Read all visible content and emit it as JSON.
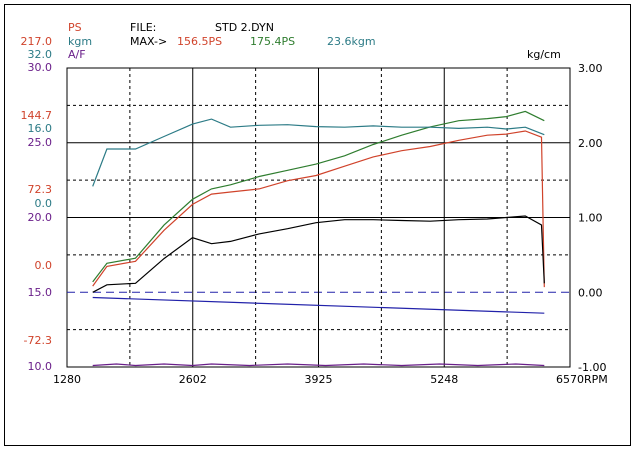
{
  "header": {
    "left_labels": [
      {
        "text": "PS",
        "color": "#d0432b"
      },
      {
        "text": "kgm",
        "color": "#2c7b86"
      },
      {
        "text": "A/F",
        "color": "#6a1f8a"
      }
    ],
    "file_label": "FILE:",
    "file_name": "STD 2.DYN",
    "max_label": "MAX->",
    "max_ps_red": "156.5PS",
    "max_ps_green": "175.4PS",
    "max_kgm": "23.6kgm",
    "right_unit": "kg/cm"
  },
  "axes": {
    "x_ticks": [
      "1280",
      "2602",
      "3925",
      "5248",
      "6570"
    ],
    "x_unit": "RPM",
    "left_ticks": [
      {
        "text": "217.0",
        "color": "#d0432b"
      },
      {
        "text": "32.0",
        "color": "#2c7b86"
      },
      {
        "text": "30.0",
        "color": "#6a1f8a"
      },
      {
        "text": "144.7",
        "color": "#d0432b"
      },
      {
        "text": "16.0",
        "color": "#2c7b86"
      },
      {
        "text": "25.0",
        "color": "#6a1f8a"
      },
      {
        "text": "72.3",
        "color": "#d0432b"
      },
      {
        "text": "0.0",
        "color": "#2c7b86"
      },
      {
        "text": "20.0",
        "color": "#6a1f8a"
      },
      {
        "text": "0.0",
        "color": "#d0432b"
      },
      {
        "text": "15.0",
        "color": "#6a1f8a"
      },
      {
        "text": "-72.3",
        "color": "#d0432b"
      },
      {
        "text": "10.0",
        "color": "#6a1f8a"
      }
    ],
    "right_ticks": [
      "3.00",
      "2.00",
      "1.00",
      "0.00",
      "-1.00"
    ]
  },
  "colors": {
    "ps_red": "#d0432b",
    "ps_green": "#2f7d2f",
    "kgm": "#2c7b86",
    "boost": "#000000",
    "af": "#6a1f8a",
    "blue_line": "#2222aa"
  },
  "chart_data": {
    "type": "line",
    "title": "",
    "xlabel": "RPM",
    "xlim": [
      1280,
      6570
    ],
    "y_left_ps_range": [
      -72.3,
      217.0
    ],
    "y_left_kgm_range": [
      -16.0,
      32.0
    ],
    "y_left_af_range": [
      10.0,
      30.0
    ],
    "y_right_range": [
      -1.0,
      3.0
    ],
    "grid": true,
    "series": [
      {
        "name": "",
        "axis": "ps",
        "color": "#d0432b",
        "x": [
          1550,
          1700,
          2000,
          2300,
          2600,
          2800,
          3000,
          3300,
          3600,
          3900,
          4200,
          4500,
          4800,
          5100,
          5400,
          5700,
          5900,
          6100,
          6270,
          6300
        ],
        "y": [
          6,
          25,
          30,
          60,
          85,
          95,
          97,
          100,
          108,
          113,
          122,
          131,
          137,
          141,
          147,
          152,
          153,
          156,
          150,
          5
        ]
      },
      {
        "name": "",
        "axis": "ps",
        "color": "#2f7d2f",
        "x": [
          1550,
          1700,
          2000,
          2300,
          2600,
          2800,
          3000,
          3300,
          3600,
          3900,
          4200,
          4500,
          4800,
          5100,
          5400,
          5700,
          5900,
          6100,
          6300
        ],
        "y": [
          10,
          28,
          33,
          65,
          90,
          100,
          104,
          112,
          118,
          124,
          132,
          143,
          152,
          160,
          166,
          168,
          170,
          175,
          166
        ]
      },
      {
        "name": "",
        "axis": "kgm",
        "color": "#2c7b86",
        "x": [
          1550,
          1700,
          2000,
          2300,
          2600,
          2800,
          3000,
          3300,
          3600,
          3900,
          4200,
          4500,
          4800,
          5100,
          5400,
          5700,
          5900,
          6100,
          6300
        ],
        "y": [
          13,
          19,
          19,
          21,
          23,
          23.8,
          22.5,
          22.8,
          22.9,
          22.6,
          22.5,
          22.7,
          22.5,
          22.5,
          22.3,
          22.5,
          22.2,
          22.5,
          21.3
        ]
      },
      {
        "name": "",
        "axis": "right",
        "color": "#000000",
        "x": [
          1550,
          1700,
          2000,
          2300,
          2600,
          2800,
          3000,
          3300,
          3600,
          3900,
          4200,
          4500,
          4800,
          5100,
          5400,
          5700,
          5900,
          6100,
          6270,
          6300
        ],
        "y": [
          0.0,
          0.1,
          0.12,
          0.45,
          0.73,
          0.65,
          0.68,
          0.78,
          0.85,
          0.93,
          0.97,
          0.97,
          0.96,
          0.95,
          0.97,
          0.98,
          1.0,
          1.02,
          0.9,
          0.12
        ]
      },
      {
        "name": "",
        "axis": "right",
        "color": "#2222aa",
        "x": [
          1550,
          6300
        ],
        "y": [
          -0.07,
          -0.28
        ]
      },
      {
        "name": "",
        "axis": "af",
        "color": "#6a1f8a",
        "x": [
          1550,
          1800,
          2000,
          2300,
          2600,
          2800,
          3200,
          3600,
          4000,
          4400,
          4800,
          5200,
          5600,
          6000,
          6300
        ],
        "y": [
          10.1,
          10.2,
          10.1,
          10.2,
          10.1,
          10.2,
          10.1,
          10.2,
          10.1,
          10.2,
          10.1,
          10.2,
          10.1,
          10.2,
          10.1
        ]
      }
    ]
  }
}
